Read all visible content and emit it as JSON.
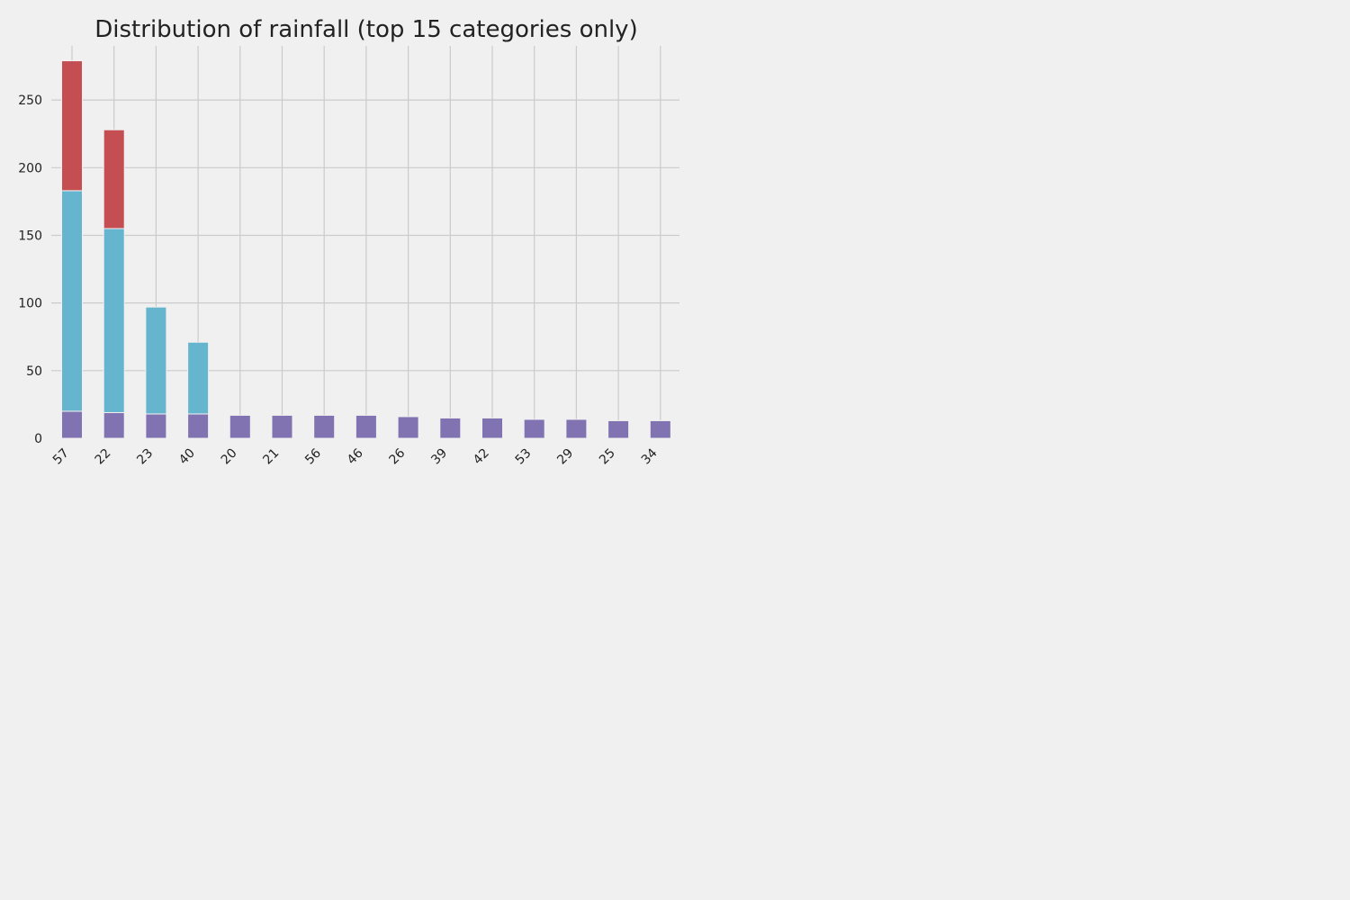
{
  "chart_data": {
    "type": "bar",
    "stacked": true,
    "title": "Distribution of rainfall (top 15 categories only)",
    "xlabel": "",
    "ylabel": "",
    "categories": [
      "57",
      "22",
      "23",
      "40",
      "20",
      "21",
      "56",
      "46",
      "26",
      "39",
      "42",
      "53",
      "29",
      "25",
      "34"
    ],
    "series": [
      {
        "color": "#8172b2",
        "values": [
          20,
          19,
          18,
          18,
          17,
          17,
          17,
          17,
          16,
          15,
          15,
          14,
          14,
          13,
          13
        ]
      },
      {
        "color": "#64b5cd",
        "values": [
          163,
          136,
          79,
          53,
          0,
          0,
          0,
          0,
          0,
          0,
          0,
          0,
          0,
          0,
          0
        ]
      },
      {
        "color": "#c44e52",
        "values": [
          96,
          73,
          0,
          0,
          0,
          0,
          0,
          0,
          0,
          0,
          0,
          0,
          0,
          0,
          0
        ]
      }
    ],
    "y_ticks": [
      0,
      50,
      100,
      150,
      200,
      250
    ],
    "ylim": [
      0,
      290
    ],
    "grid": true,
    "legend": "none",
    "colors": {
      "background": "#f0f0f0",
      "grid": "#cbcbcb",
      "text": "#222222",
      "bar_edge": "#f0f0f0"
    }
  }
}
